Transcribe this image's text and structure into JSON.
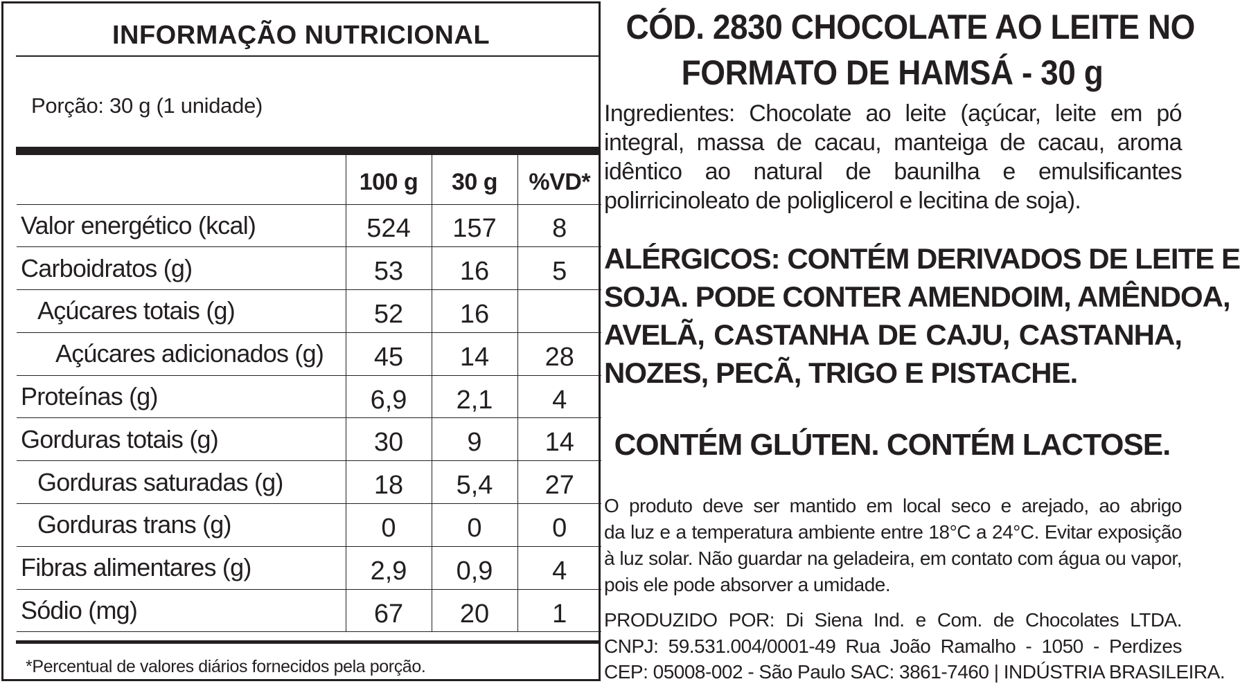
{
  "nutrition": {
    "title": "INFORMAÇÃO NUTRICIONAL",
    "portion": "Porção: 30 g (1 unidade)",
    "headers": [
      "",
      "100 g",
      "30 g",
      "%VD*"
    ],
    "rows": [
      {
        "label": "Valor energético (kcal)",
        "v100": "524",
        "v30": "157",
        "vd": "8"
      },
      {
        "label": "Carboidratos (g)",
        "v100": "53",
        "v30": "16",
        "vd": "5"
      },
      {
        "label": "Açúcares totais (g)",
        "v100": "52",
        "v30": "16",
        "vd": ""
      },
      {
        "label": "Açúcares adicionados (g)",
        "v100": "45",
        "v30": "14",
        "vd": "28"
      },
      {
        "label": "Proteínas (g)",
        "v100": "6,9",
        "v30": "2,1",
        "vd": "4"
      },
      {
        "label": "Gorduras totais (g)",
        "v100": "30",
        "v30": "9",
        "vd": "14"
      },
      {
        "label": "Gorduras saturadas (g)",
        "v100": "18",
        "v30": "5,4",
        "vd": "27"
      },
      {
        "label": "Gorduras trans (g)",
        "v100": "0",
        "v30": "0",
        "vd": "0"
      },
      {
        "label": "Fibras alimentares (g)",
        "v100": "2,9",
        "v30": "0,9",
        "vd": "4"
      },
      {
        "label": "Sódio (mg)",
        "v100": "67",
        "v30": "20",
        "vd": "1"
      }
    ],
    "footnote": "*Percentual de valores diários fornecidos pela porção."
  },
  "product": {
    "title_lines": [
      "CÓD. 2830 CHOCOLATE AO LEITE NO",
      "FORMATO DE HAMSÁ  - 30 g"
    ],
    "ingredients_lines": [
      "Ingredientes: Chocolate ao leite (açúcar, leite em pó",
      "integral, massa de cacau, manteiga de cacau, aroma",
      "idêntico ao natural de baunilha e emulsificantes",
      "polirricinoleato de poliglicerol e lecitina de soja)."
    ],
    "allergen_lines": [
      "ALÉRGICOS: CONTÉM DERIVADOS DE LEITE E",
      "SOJA. PODE CONTER AMENDOIM, AMÊNDOA,",
      "AVELÃ, CASTANHA DE CAJU, CASTANHA,",
      "NOZES, PECÃ, TRIGO E PISTACHE."
    ],
    "gluten_lactose": "CONTÉM GLÚTEN. CONTÉM LACTOSE.",
    "storage_lines": [
      "O produto deve ser mantido em local seco e arejado, ao abrigo",
      "da luz e a temperatura ambiente entre 18°C a 24°C. Evitar exposição",
      "à luz solar. Não guardar na geladeira, em contato com água ou vapor,",
      "pois ele pode absorver a umidade."
    ],
    "producer_lines": [
      "PRODUZIDO POR: Di Siena Ind. e Com. de Chocolates LTDA.",
      "CNPJ: 59.531.004/0001-49 Rua João Ramalho - 1050 - Perdizes",
      "CEP: 05008-002 - São Paulo SAC: 3861-7460 | INDÚSTRIA BRASILEIRA."
    ]
  }
}
